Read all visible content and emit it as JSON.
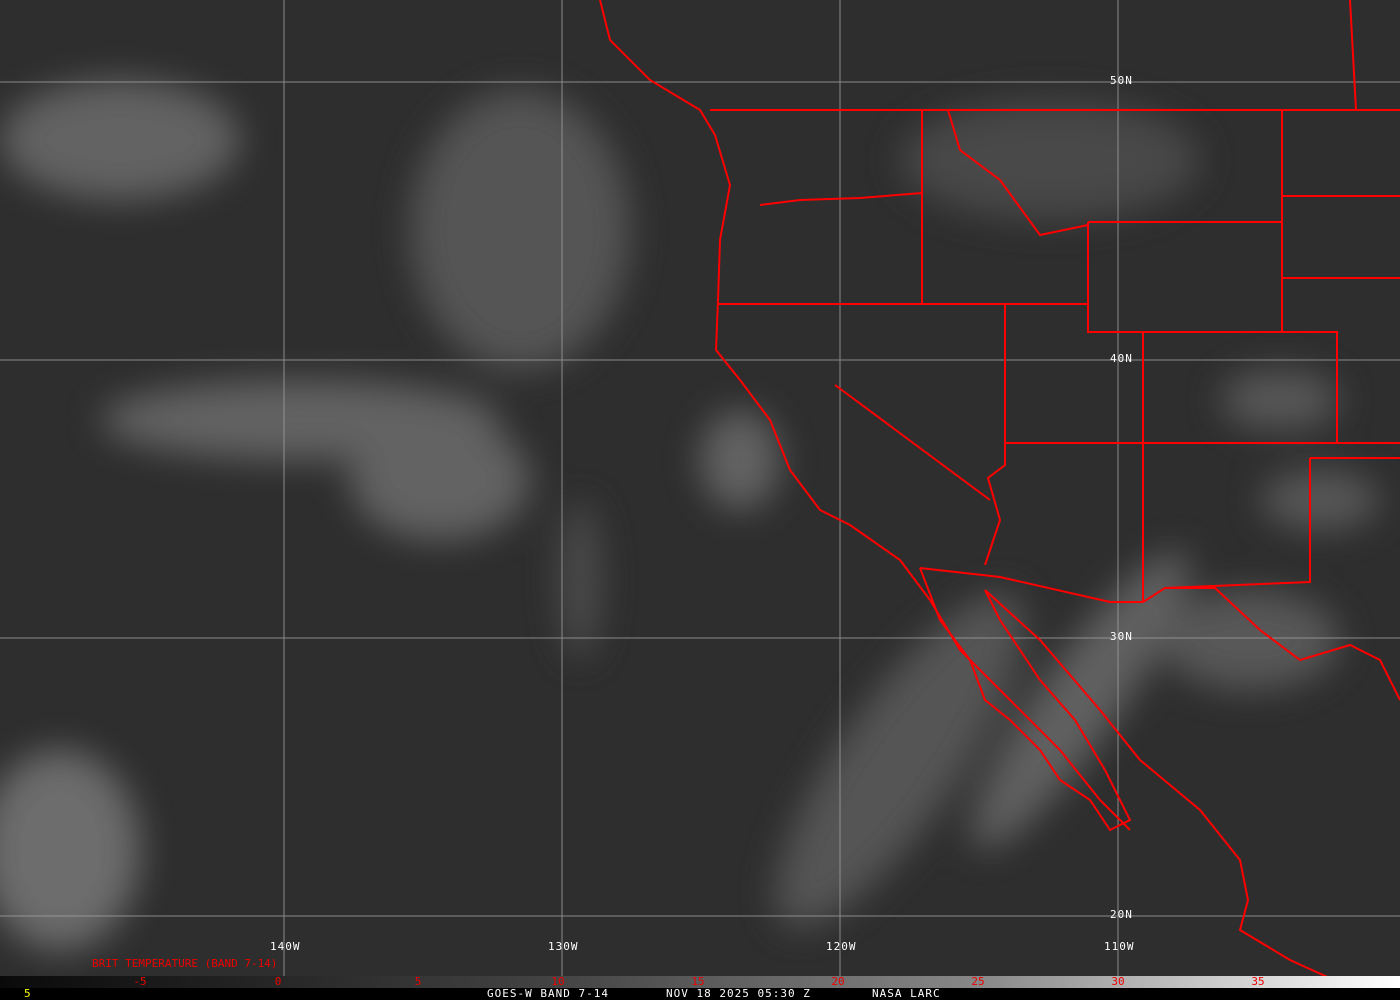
{
  "grid_labels": {
    "lon": [
      "140W",
      "130W",
      "120W",
      "110W"
    ],
    "lat": [
      "50N",
      "40N",
      "30N",
      "20N"
    ]
  },
  "legend": {
    "title": "BRIT TEMPERATURE (BAND 7-14)",
    "ticks": [
      "-5",
      "0",
      "5",
      "10",
      "15",
      "20",
      "25",
      "30",
      "35"
    ],
    "scale_min_label": "5"
  },
  "footer": {
    "satellite": "GOES-W BAND 7-14",
    "datetime": "NOV 18 2025 05:30 Z",
    "source": "NASA LARC"
  },
  "colors": {
    "boundaries": "#ff0000",
    "grid": "#a0a0a0",
    "tick_text": "#ee0000",
    "scale_label": "#ffff00"
  }
}
